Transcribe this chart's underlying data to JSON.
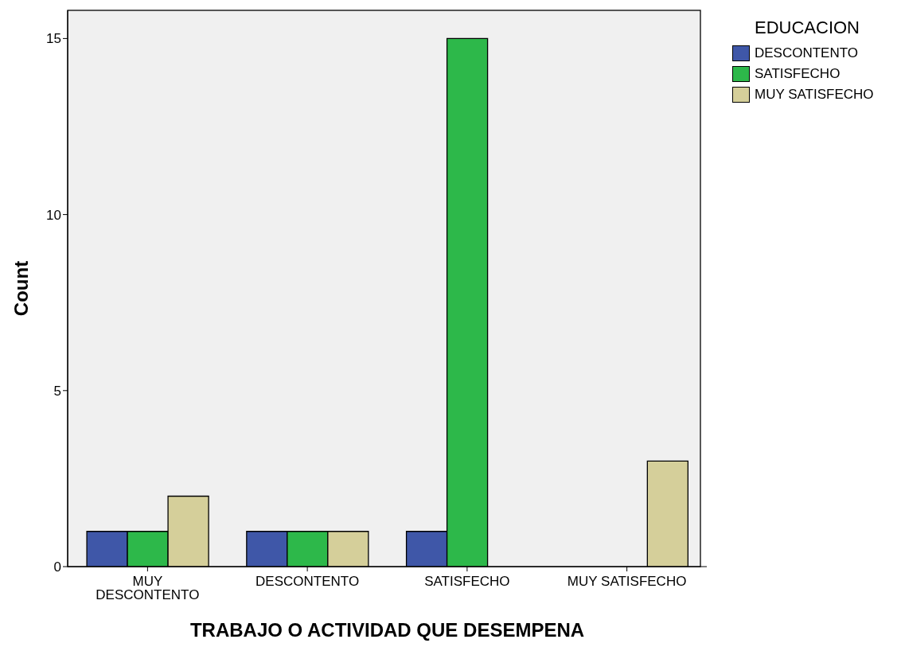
{
  "chart_data": {
    "type": "bar",
    "xlabel": "TRABAJO O ACTIVIDAD QUE DESEMPENA",
    "ylabel": "Count",
    "legend_title": "EDUCACION",
    "categories": [
      "MUY DESCONTENTO",
      "DESCONTENTO",
      "SATISFECHO",
      "MUY SATISFECHO"
    ],
    "series": [
      {
        "name": "DESCONTENTO",
        "color": "#3f57a8",
        "values": [
          1,
          1,
          1,
          null
        ]
      },
      {
        "name": "SATISFECHO",
        "color": "#2db84a",
        "values": [
          1,
          1,
          15,
          null
        ]
      },
      {
        "name": "MUY SATISFECHO",
        "color": "#d5cf9a",
        "values": [
          2,
          1,
          null,
          3
        ]
      }
    ],
    "ylim": [
      0,
      15.8
    ],
    "yticks": [
      0,
      5,
      10,
      15
    ],
    "grid": false,
    "legend": "top right"
  }
}
